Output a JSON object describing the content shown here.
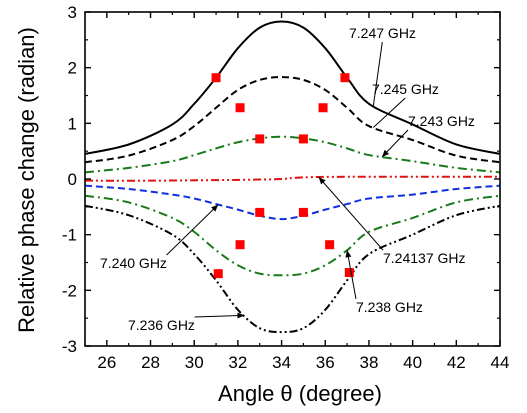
{
  "chart_data": {
    "type": "line",
    "xlabel": "Angle θ (degree)",
    "ylabel": "Relative phase change (radian)",
    "xlim": [
      25,
      44
    ],
    "ylim": [
      -3,
      3
    ],
    "x_ticks": [
      "26",
      "28",
      "30",
      "32",
      "34",
      "36",
      "38",
      "40",
      "42",
      "44"
    ],
    "y_ticks": [
      "-3",
      "-2",
      "-1",
      "0",
      "1",
      "2",
      "3"
    ],
    "grid": false,
    "legend": "none",
    "series": [
      {
        "name": "7.247 GHz",
        "style": "solid",
        "color": "#000000",
        "x": [
          25,
          27,
          29,
          30,
          31,
          32,
          33,
          34,
          35,
          36,
          37,
          38,
          40,
          42,
          44
        ],
        "y": [
          0.45,
          0.62,
          0.98,
          1.35,
          1.82,
          2.35,
          2.72,
          2.83,
          2.72,
          2.35,
          1.82,
          1.35,
          0.98,
          0.62,
          0.45
        ],
        "markers": [
          {
            "x": 31.0,
            "y": 1.82
          },
          {
            "x": 36.9,
            "y": 1.82
          }
        ]
      },
      {
        "name": "7.245 GHz",
        "style": "dash",
        "color": "#000000",
        "x": [
          25,
          27,
          29,
          30,
          31,
          32,
          33,
          34,
          35,
          36,
          37,
          38,
          40,
          42,
          44
        ],
        "y": [
          0.3,
          0.42,
          0.7,
          0.95,
          1.28,
          1.6,
          1.78,
          1.83,
          1.78,
          1.6,
          1.28,
          0.95,
          0.7,
          0.42,
          0.3
        ],
        "markers": [
          {
            "x": 32.1,
            "y": 1.28
          },
          {
            "x": 35.9,
            "y": 1.28
          }
        ]
      },
      {
        "name": "7.243 GHz",
        "style": "dashdot",
        "color": "#1a7a1a",
        "x": [
          25,
          27,
          29,
          30,
          31,
          32,
          33,
          34,
          35,
          36,
          37,
          38,
          40,
          42,
          44
        ],
        "y": [
          0.12,
          0.2,
          0.32,
          0.43,
          0.55,
          0.66,
          0.73,
          0.76,
          0.73,
          0.66,
          0.55,
          0.43,
          0.32,
          0.2,
          0.12
        ],
        "markers": [
          {
            "x": 33.0,
            "y": 0.72
          },
          {
            "x": 35.0,
            "y": 0.72
          }
        ]
      },
      {
        "name": "7.24137 GHz",
        "style": "dashdotdot",
        "color": "#e01010",
        "x": [
          25,
          28,
          31,
          33,
          34,
          35,
          37,
          40,
          44
        ],
        "y": [
          -0.03,
          -0.03,
          -0.02,
          -0.01,
          0.0,
          0.03,
          0.04,
          0.04,
          0.04
        ],
        "markers": []
      },
      {
        "name": "7.240 GHz",
        "style": "dash",
        "color": "#1030e0",
        "x": [
          25,
          27,
          29,
          30,
          31,
          32,
          33,
          34,
          35,
          36,
          37,
          38,
          40,
          42,
          44
        ],
        "y": [
          -0.12,
          -0.18,
          -0.28,
          -0.35,
          -0.45,
          -0.55,
          -0.66,
          -0.72,
          -0.66,
          -0.55,
          -0.45,
          -0.35,
          -0.28,
          -0.18,
          -0.12
        ],
        "markers": [
          {
            "x": 33.0,
            "y": -0.6
          },
          {
            "x": 35.0,
            "y": -0.6
          }
        ]
      },
      {
        "name": "7.238 GHz",
        "style": "dashdot",
        "color": "#1a7a1a",
        "x": [
          25,
          27,
          29,
          30,
          31,
          32,
          33,
          34,
          35,
          36,
          37,
          38,
          40,
          42,
          44
        ],
        "y": [
          -0.3,
          -0.42,
          -0.7,
          -0.95,
          -1.28,
          -1.55,
          -1.7,
          -1.73,
          -1.7,
          -1.55,
          -1.28,
          -0.95,
          -0.7,
          -0.42,
          -0.3
        ],
        "markers": [
          {
            "x": 32.1,
            "y": -1.18
          },
          {
            "x": 36.2,
            "y": -1.18
          }
        ]
      },
      {
        "name": "7.236 GHz",
        "style": "dashdotdot",
        "color": "#000000",
        "x": [
          25,
          27,
          29,
          30,
          31,
          32,
          33,
          34,
          35,
          36,
          37,
          38,
          40,
          42,
          44
        ],
        "y": [
          -0.48,
          -0.65,
          -1.0,
          -1.35,
          -1.82,
          -2.35,
          -2.68,
          -2.75,
          -2.68,
          -2.35,
          -1.82,
          -1.35,
          -1.0,
          -0.65,
          -0.48
        ],
        "markers": [
          {
            "x": 31.1,
            "y": -1.7
          },
          {
            "x": 37.1,
            "y": -1.68
          }
        ]
      }
    ],
    "annotations": [
      {
        "text": "7.247 GHz",
        "series": 0
      },
      {
        "text": "7.245 GHz",
        "series": 1
      },
      {
        "text": "7.243 GHz",
        "series": 2
      },
      {
        "text": "7.240 GHz",
        "series": 4
      },
      {
        "text": "7.24137 GHz",
        "series": 3
      },
      {
        "text": "7.238 GHz",
        "series": 5
      },
      {
        "text": "7.236 GHz",
        "series": 6
      }
    ],
    "marker_color": "#ff0000"
  }
}
